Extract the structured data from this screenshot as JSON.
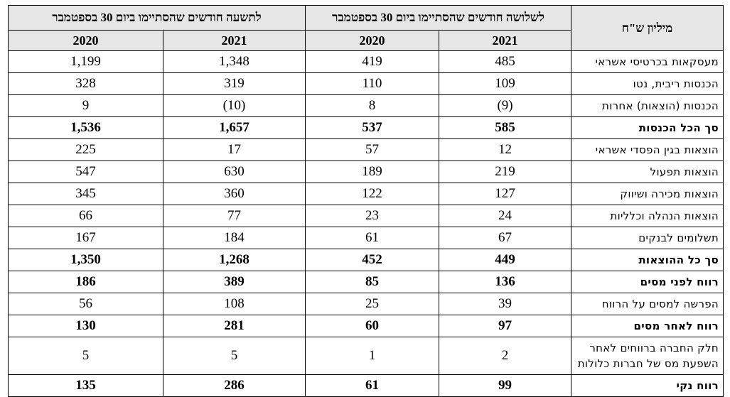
{
  "table": {
    "label_header": "מיליון ש\"ח",
    "groups": [
      "לשלושה חודשים שהסתיימו ביום 30 בספטמבר",
      "לתשעה חודשים שהסתיימו ביום 30 בספטמבר"
    ],
    "years": [
      "2021",
      "2020",
      "2021",
      "2020"
    ],
    "rows": [
      {
        "label": "מעסקאות בכרטיסי אשראי",
        "values": [
          "485",
          "419",
          "1,348",
          "1,199"
        ],
        "bold": false
      },
      {
        "label": "הכנסות ריבית, נטו",
        "values": [
          "109",
          "110",
          "319",
          "328"
        ],
        "bold": false
      },
      {
        "label": "הכנסות (הוצאות) אחרות",
        "values": [
          "(9)",
          "8",
          "(10)",
          "9"
        ],
        "bold": false
      },
      {
        "label": "סך הכל הכנסות",
        "values": [
          "585",
          "537",
          "1,657",
          "1,536"
        ],
        "bold": true
      },
      {
        "label": "הוצאות בגין הפסדי אשראי",
        "values": [
          "12",
          "57",
          "17",
          "225"
        ],
        "bold": false
      },
      {
        "label": "הוצאות תפעול",
        "values": [
          "219",
          "189",
          "630",
          "547"
        ],
        "bold": false
      },
      {
        "label": "הוצאות מכירה ושיווק",
        "values": [
          "127",
          "122",
          "360",
          "345"
        ],
        "bold": false
      },
      {
        "label": "הוצאות הנהלה וכלליות",
        "values": [
          "24",
          "23",
          "77",
          "66"
        ],
        "bold": false
      },
      {
        "label": "תשלומים לבנקים",
        "values": [
          "67",
          "61",
          "184",
          "167"
        ],
        "bold": false
      },
      {
        "label": "סך כל ההוצאות",
        "values": [
          "449",
          "452",
          "1,268",
          "1,350"
        ],
        "bold": true
      },
      {
        "label": "רווח לפני מסים",
        "values": [
          "136",
          "85",
          "389",
          "186"
        ],
        "bold": true
      },
      {
        "label": "הפרשה למסים על הרווח",
        "values": [
          "39",
          "25",
          "108",
          "56"
        ],
        "bold": false
      },
      {
        "label": "רווח לאחר מסים",
        "values": [
          "97",
          "60",
          "281",
          "130"
        ],
        "bold": true
      },
      {
        "label": "חלק החברה ברווחים לאחר השפעת מס של חברות כלולות",
        "values": [
          "2",
          "1",
          "5",
          "5"
        ],
        "bold": false,
        "tall": true
      },
      {
        "label": "רווח נקי",
        "values": [
          "99",
          "61",
          "286",
          "135"
        ],
        "bold": true
      }
    ]
  }
}
